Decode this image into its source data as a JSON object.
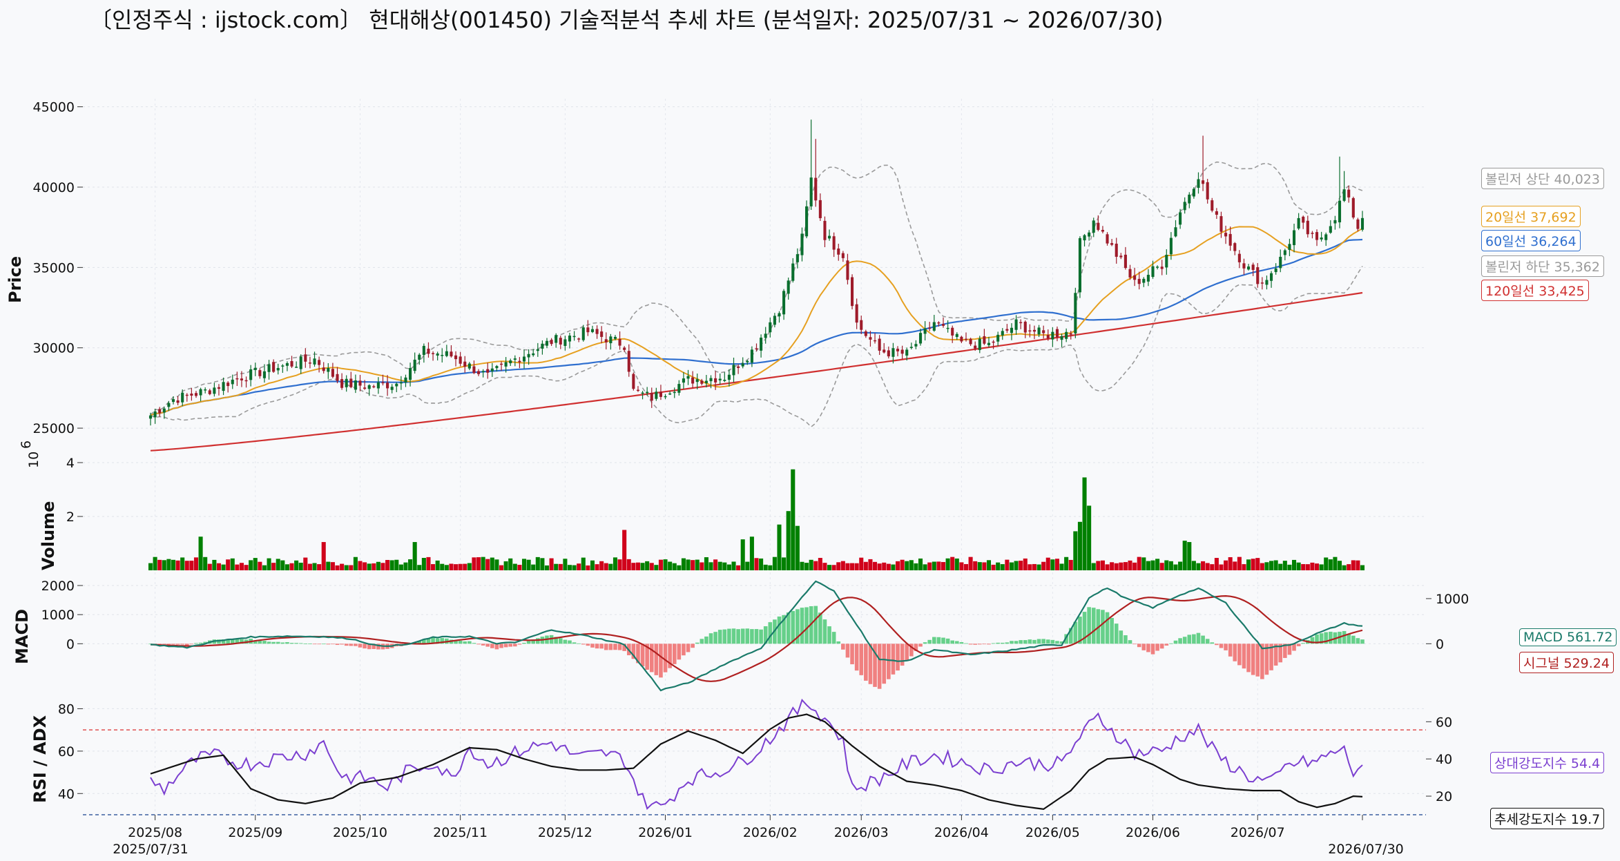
{
  "title": "〔인정주식 : ijstock.com〕 현대해상(001450) 기술적분석 추세 차트 (분석일자: 2025/07/31 ~ 2026/07/30)",
  "colors": {
    "up": "#0a6e2e",
    "down": "#9e1b2a",
    "vol_up": "#008000",
    "vol_down": "#d0021b",
    "ma20": "#e6a020",
    "ma60": "#2f6fcf",
    "ma120": "#d03030",
    "bollinger": "#9a9a9a",
    "macd": "#1a7a6a",
    "signal": "#b02020",
    "hist_pos": "#66d08a",
    "hist_neg": "#f08080",
    "rsi": "#7b3fd0",
    "adx": "#111111"
  },
  "chart_data": [
    {
      "type": "candlestick",
      "panel": "price",
      "ylabel": "Price",
      "ylim": [
        23500,
        45500
      ],
      "yticks": [
        "25000",
        "30000",
        "35000",
        "40000",
        "45000"
      ],
      "xticks": [
        "2025/08",
        "2025/09",
        "2025/10",
        "2025/11",
        "2025/12",
        "2026/01",
        "2026/02",
        "2026/03",
        "2026/04",
        "2026/05",
        "2026/06",
        "2026/07"
      ],
      "x_range_labels": [
        "2025/07/31",
        "2026/07/30"
      ],
      "price_keypoints": [
        [
          0,
          25800
        ],
        [
          5,
          26800
        ],
        [
          12,
          27300
        ],
        [
          20,
          28200
        ],
        [
          28,
          28800
        ],
        [
          36,
          29300
        ],
        [
          42,
          27800
        ],
        [
          48,
          27600
        ],
        [
          54,
          27800
        ],
        [
          60,
          29800
        ],
        [
          66,
          29500
        ],
        [
          74,
          28200
        ],
        [
          80,
          29300
        ],
        [
          88,
          30400
        ],
        [
          96,
          31000
        ],
        [
          104,
          30200
        ],
        [
          106,
          27300
        ],
        [
          110,
          26900
        ],
        [
          118,
          28000
        ],
        [
          126,
          28200
        ],
        [
          132,
          29800
        ],
        [
          138,
          32500
        ],
        [
          143,
          36800
        ],
        [
          145,
          40500
        ],
        [
          148,
          37000
        ],
        [
          152,
          35800
        ],
        [
          155,
          31500
        ],
        [
          160,
          29800
        ],
        [
          166,
          29600
        ],
        [
          172,
          31600
        ],
        [
          178,
          30300
        ],
        [
          184,
          30200
        ],
        [
          190,
          31500
        ],
        [
          196,
          30800
        ],
        [
          202,
          31000
        ],
        [
          204,
          36500
        ],
        [
          207,
          38000
        ],
        [
          212,
          35800
        ],
        [
          216,
          34000
        ],
        [
          222,
          35200
        ],
        [
          226,
          38500
        ],
        [
          230,
          40800
        ],
        [
          233,
          38500
        ],
        [
          236,
          37000
        ],
        [
          240,
          35200
        ],
        [
          244,
          34000
        ],
        [
          248,
          35500
        ],
        [
          252,
          37800
        ],
        [
          256,
          36500
        ],
        [
          260,
          38200
        ],
        [
          262,
          39800
        ],
        [
          265,
          37500
        ],
        [
          266,
          38200
        ]
      ],
      "volume_spikes": [
        [
          11,
          1.25
        ],
        [
          38,
          1.05
        ],
        [
          58,
          1.05
        ],
        [
          104,
          1.5
        ],
        [
          130,
          1.15
        ],
        [
          132,
          1.25
        ],
        [
          138,
          1.7
        ],
        [
          140,
          2.2
        ],
        [
          141,
          3.75
        ],
        [
          142,
          1.65
        ],
        [
          203,
          1.45
        ],
        [
          204,
          1.8
        ],
        [
          205,
          3.45
        ],
        [
          206,
          2.4
        ],
        [
          227,
          1.1
        ],
        [
          228,
          1.05
        ]
      ],
      "series": [
        {
          "name": "20일선",
          "label_value": "37,692"
        },
        {
          "name": "60일선",
          "label_value": "36,264"
        },
        {
          "name": "120일선",
          "label_value": "33,425"
        },
        {
          "name": "볼린저 상단",
          "label_value": "40,023"
        },
        {
          "name": "볼린저 하단",
          "label_value": "35,362"
        }
      ]
    },
    {
      "type": "bar",
      "panel": "volume",
      "ylabel": "Volume",
      "unit_prefix": "10",
      "unit_exp": "6",
      "ylim": [
        0,
        4
      ],
      "yticks": [
        "2",
        "4"
      ]
    },
    {
      "type": "line",
      "panel": "macd",
      "ylabel": "MACD",
      "ylim": [
        -1700,
        2000
      ],
      "yticks_left": [
        "0",
        "1000",
        "2000"
      ],
      "yticks_right": [
        "0",
        "1000"
      ],
      "macd_keypoints": [
        [
          0,
          -30
        ],
        [
          8,
          -130
        ],
        [
          14,
          80
        ],
        [
          22,
          230
        ],
        [
          30,
          260
        ],
        [
          38,
          240
        ],
        [
          44,
          170
        ],
        [
          50,
          -80
        ],
        [
          56,
          -40
        ],
        [
          62,
          220
        ],
        [
          70,
          250
        ],
        [
          76,
          10
        ],
        [
          80,
          40
        ],
        [
          88,
          480
        ],
        [
          96,
          260
        ],
        [
          104,
          -20
        ],
        [
          112,
          -1590
        ],
        [
          118,
          -1350
        ],
        [
          126,
          -700
        ],
        [
          134,
          -150
        ],
        [
          140,
          1040
        ],
        [
          146,
          2150
        ],
        [
          150,
          1800
        ],
        [
          154,
          900
        ],
        [
          160,
          -550
        ],
        [
          166,
          -600
        ],
        [
          172,
          -200
        ],
        [
          180,
          -380
        ],
        [
          188,
          -240
        ],
        [
          196,
          -60
        ],
        [
          200,
          -40
        ],
        [
          206,
          1580
        ],
        [
          210,
          1920
        ],
        [
          214,
          1560
        ],
        [
          220,
          1240
        ],
        [
          226,
          1680
        ],
        [
          230,
          1900
        ],
        [
          236,
          1400
        ],
        [
          244,
          -150
        ],
        [
          250,
          -50
        ],
        [
          256,
          350
        ],
        [
          262,
          700
        ],
        [
          266,
          600
        ]
      ],
      "series": [
        {
          "name": "MACD",
          "label_value": "561.72"
        },
        {
          "name": "시그널",
          "label_value": "529.24"
        }
      ]
    },
    {
      "type": "line",
      "panel": "rsi_adx",
      "ylabel": "RSI / ADX",
      "ylim": [
        30,
        86
      ],
      "yticks_left": [
        "40",
        "60",
        "80"
      ],
      "yticks_right": [
        "20",
        "40",
        "60"
      ],
      "reference_lines": [
        70,
        30
      ],
      "rsi_keypoints": [
        [
          0,
          46
        ],
        [
          3,
          42
        ],
        [
          6,
          49
        ],
        [
          10,
          56
        ],
        [
          14,
          58
        ],
        [
          18,
          55
        ],
        [
          22,
          54
        ],
        [
          28,
          57
        ],
        [
          34,
          59
        ],
        [
          38,
          64
        ],
        [
          42,
          48
        ],
        [
          48,
          47
        ],
        [
          52,
          43
        ],
        [
          56,
          50
        ],
        [
          62,
          55
        ],
        [
          66,
          47
        ],
        [
          70,
          62
        ],
        [
          74,
          54
        ],
        [
          78,
          57
        ],
        [
          82,
          61
        ],
        [
          88,
          64
        ],
        [
          94,
          57
        ],
        [
          100,
          59
        ],
        [
          104,
          56
        ],
        [
          108,
          37
        ],
        [
          112,
          33
        ],
        [
          118,
          47
        ],
        [
          124,
          50
        ],
        [
          130,
          55
        ],
        [
          136,
          66
        ],
        [
          140,
          75
        ],
        [
          144,
          83
        ],
        [
          148,
          76
        ],
        [
          152,
          65
        ],
        [
          154,
          42
        ],
        [
          160,
          47
        ],
        [
          166,
          54
        ],
        [
          172,
          58
        ],
        [
          178,
          55
        ],
        [
          184,
          51
        ],
        [
          190,
          55
        ],
        [
          196,
          54
        ],
        [
          200,
          54
        ],
        [
          204,
          67
        ],
        [
          208,
          76
        ],
        [
          212,
          68
        ],
        [
          216,
          59
        ],
        [
          222,
          60
        ],
        [
          226,
          67
        ],
        [
          230,
          70
        ],
        [
          234,
          58
        ],
        [
          238,
          52
        ],
        [
          242,
          47
        ],
        [
          246,
          45
        ],
        [
          250,
          54
        ],
        [
          256,
          55
        ],
        [
          260,
          60
        ],
        [
          262,
          60
        ],
        [
          264,
          50
        ],
        [
          266,
          54.4
        ]
      ],
      "adx_keypoints": [
        [
          0,
          32
        ],
        [
          10,
          40
        ],
        [
          16,
          42
        ],
        [
          22,
          24
        ],
        [
          28,
          18
        ],
        [
          34,
          16
        ],
        [
          40,
          19
        ],
        [
          46,
          27
        ],
        [
          54,
          30
        ],
        [
          62,
          37
        ],
        [
          70,
          46
        ],
        [
          76,
          45
        ],
        [
          82,
          40
        ],
        [
          88,
          36
        ],
        [
          94,
          34
        ],
        [
          100,
          34
        ],
        [
          106,
          35
        ],
        [
          112,
          48
        ],
        [
          118,
          55
        ],
        [
          124,
          50
        ],
        [
          130,
          43
        ],
        [
          136,
          56
        ],
        [
          140,
          62
        ],
        [
          144,
          64
        ],
        [
          148,
          60
        ],
        [
          154,
          47
        ],
        [
          160,
          36
        ],
        [
          166,
          28
        ],
        [
          172,
          26
        ],
        [
          178,
          23
        ],
        [
          184,
          18
        ],
        [
          190,
          15
        ],
        [
          196,
          13
        ],
        [
          202,
          23
        ],
        [
          206,
          34
        ],
        [
          210,
          40
        ],
        [
          216,
          41
        ],
        [
          220,
          37
        ],
        [
          226,
          29
        ],
        [
          230,
          26
        ],
        [
          236,
          24
        ],
        [
          242,
          23
        ],
        [
          248,
          23
        ],
        [
          252,
          17
        ],
        [
          256,
          14
        ],
        [
          260,
          16
        ],
        [
          264,
          20
        ],
        [
          266,
          19.7
        ]
      ],
      "series": [
        {
          "name": "상대강도지수",
          "label_value": "54.4"
        },
        {
          "name": "추세강도지수",
          "label_value": "19.7"
        }
      ]
    }
  ]
}
